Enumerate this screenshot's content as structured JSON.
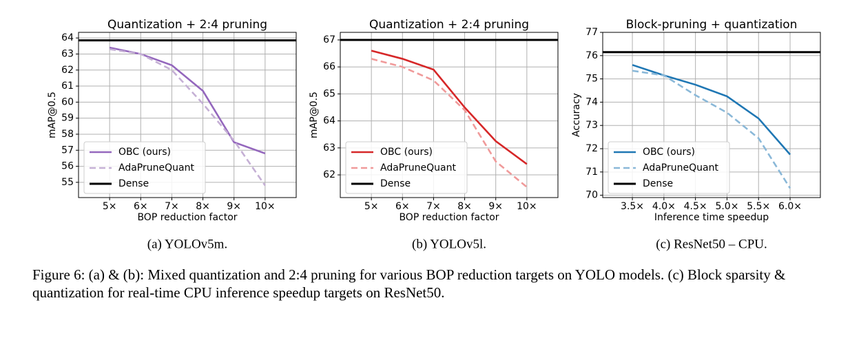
{
  "chart_data": [
    {
      "type": "line",
      "title": "Quantization + 2:4 pruning",
      "xlabel": "BOP reduction factor",
      "ylabel": "mAP@0.5",
      "caption": "(a) YOLOv5m.",
      "x": [
        5,
        6,
        7,
        8,
        9,
        10
      ],
      "series": [
        {
          "name": "OBC (ours)",
          "color": "#9467bd",
          "dashed": false,
          "values": [
            63.4,
            63.0,
            62.3,
            60.7,
            57.5,
            56.8
          ]
        },
        {
          "name": "AdaPruneQuant",
          "color": "#c5b0d5",
          "dashed": true,
          "values": [
            63.3,
            63.0,
            62.0,
            59.9,
            57.6,
            54.8
          ]
        }
      ],
      "reference_line": {
        "name": "Dense",
        "color": "#000000",
        "value": 63.85
      },
      "xlim": [
        4,
        11
      ],
      "ylim": [
        54.05,
        64.35
      ],
      "xticks": [
        {
          "value": 5,
          "label": "5×"
        },
        {
          "value": 6,
          "label": "6×"
        },
        {
          "value": 7,
          "label": "7×"
        },
        {
          "value": 8,
          "label": "8×"
        },
        {
          "value": 9,
          "label": "9×"
        },
        {
          "value": 10,
          "label": "10×"
        }
      ],
      "yticks": [
        55,
        56,
        57,
        58,
        59,
        60,
        61,
        62,
        63,
        64
      ],
      "grid": true,
      "legend": "lower left"
    },
    {
      "type": "line",
      "title": "Quantization + 2:4 pruning",
      "xlabel": "BOP reduction factor",
      "ylabel": "mAP@0.5",
      "caption": "(b) YOLOv5l.",
      "x": [
        5,
        6,
        7,
        8,
        9,
        10
      ],
      "series": [
        {
          "name": "OBC (ours)",
          "color": "#d62728",
          "dashed": false,
          "values": [
            66.6,
            66.3,
            65.9,
            64.5,
            63.25,
            62.4
          ]
        },
        {
          "name": "AdaPruneQuant",
          "color": "#f09a9a",
          "dashed": true,
          "values": [
            66.3,
            66.0,
            65.5,
            64.4,
            62.5,
            61.55
          ]
        }
      ],
      "reference_line": {
        "name": "Dense",
        "color": "#000000",
        "value": 67.0
      },
      "xlim": [
        4,
        11
      ],
      "ylim": [
        61.16,
        67.28
      ],
      "xticks": [
        {
          "value": 5,
          "label": "5×"
        },
        {
          "value": 6,
          "label": "6×"
        },
        {
          "value": 7,
          "label": "7×"
        },
        {
          "value": 8,
          "label": "8×"
        },
        {
          "value": 9,
          "label": "9×"
        },
        {
          "value": 10,
          "label": "10×"
        }
      ],
      "yticks": [
        62,
        63,
        64,
        65,
        66,
        67
      ],
      "grid": true,
      "legend": "lower left"
    },
    {
      "type": "line",
      "title": "Block-pruning + quantization",
      "xlabel": "Inference time speedup",
      "ylabel": "Accuracy",
      "caption": "(c) ResNet50 – CPU.",
      "x": [
        3.5,
        4.0,
        4.5,
        5.0,
        5.5,
        6.0
      ],
      "series": [
        {
          "name": "OBC (ours)",
          "color": "#1f77b4",
          "dashed": false,
          "values": [
            75.6,
            75.15,
            74.75,
            74.25,
            73.3,
            71.75
          ]
        },
        {
          "name": "AdaPruneQuant",
          "color": "#8ab8d8",
          "dashed": true,
          "values": [
            75.35,
            75.15,
            74.3,
            73.55,
            72.45,
            70.3
          ]
        }
      ],
      "reference_line": {
        "name": "Dense",
        "color": "#000000",
        "value": 76.15
      },
      "xlim": [
        3.03,
        6.48
      ],
      "ylim": [
        69.9,
        77.0
      ],
      "xticks": [
        {
          "value": 3.5,
          "label": "3.5×"
        },
        {
          "value": 4.0,
          "label": "4.0×"
        },
        {
          "value": 4.5,
          "label": "4.5×"
        },
        {
          "value": 5.0,
          "label": "5.0×"
        },
        {
          "value": 5.5,
          "label": "5.5×"
        },
        {
          "value": 6.0,
          "label": "6.0×"
        }
      ],
      "yticks": [
        70,
        71,
        72,
        73,
        74,
        75,
        76,
        77
      ],
      "grid": true,
      "legend": "lower left"
    }
  ],
  "figure_caption": "Figure 6: (a) & (b): Mixed quantization and 2:4 pruning for various BOP reduction targets on YOLO models. (c) Block sparsity & quantization for real-time CPU inference speedup targets on ResNet50."
}
